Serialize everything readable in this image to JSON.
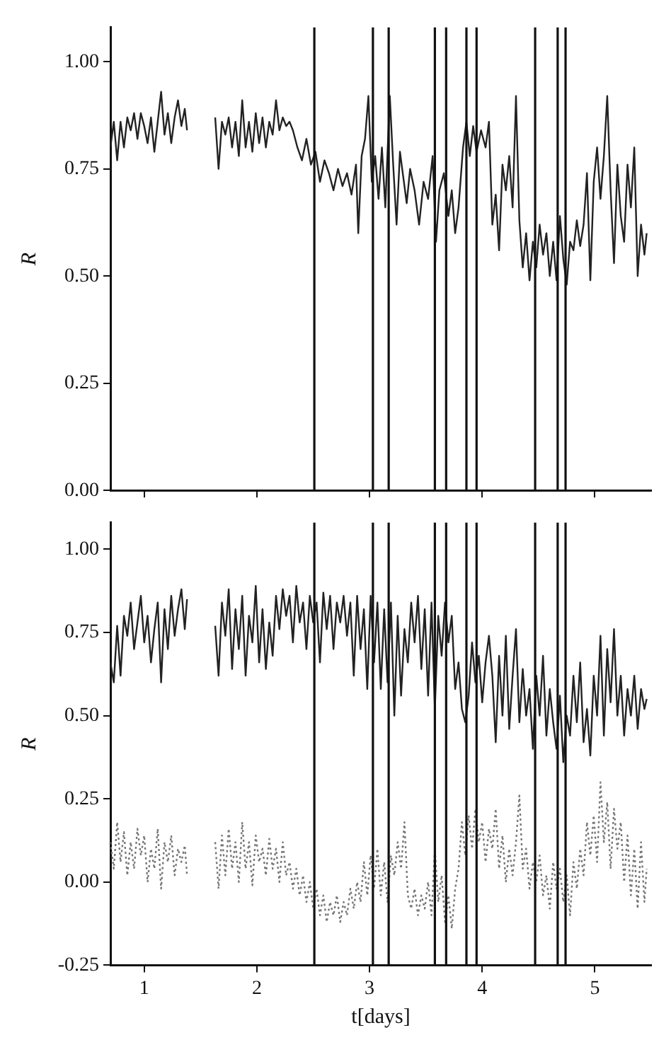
{
  "chart_data": [
    {
      "type": "line",
      "ylabel": "R",
      "xlim": [
        0.7,
        5.5
      ],
      "xticks": [
        1,
        2,
        3,
        4,
        5
      ],
      "ylim": [
        0,
        1.08
      ],
      "yticks": [
        {
          "value": 0,
          "label": "0.00"
        },
        {
          "value": 0.25,
          "label": "0.25"
        },
        {
          "value": 0.5,
          "label": "0.50"
        },
        {
          "value": 0.75,
          "label": "0.75"
        },
        {
          "value": 1,
          "label": "1.00"
        }
      ],
      "tick_labels": "y",
      "grid": false,
      "legend": false,
      "marker": "none",
      "ref_lines": [
        {
          "axis": "x",
          "value": 2.51,
          "color": "#111111"
        },
        {
          "axis": "x",
          "value": 3.03,
          "color": "#111111"
        },
        {
          "axis": "x",
          "value": 3.17,
          "color": "#111111"
        },
        {
          "axis": "x",
          "value": 3.58,
          "color": "#111111"
        },
        {
          "axis": "x",
          "value": 3.68,
          "color": "#111111"
        },
        {
          "axis": "x",
          "value": 3.86,
          "color": "#111111"
        },
        {
          "axis": "x",
          "value": 3.95,
          "color": "#111111"
        },
        {
          "axis": "x",
          "value": 4.47,
          "color": "#111111"
        },
        {
          "axis": "x",
          "value": 4.67,
          "color": "#111111"
        },
        {
          "axis": "x",
          "value": 4.74,
          "color": "#111111"
        }
      ],
      "series": [
        {
          "color": "#222222",
          "line_style": "solid",
          "x": [
            0.7,
            0.73,
            0.76,
            0.79,
            0.82,
            0.85,
            0.88,
            0.91,
            0.94,
            0.97,
            1.0,
            1.03,
            1.06,
            1.09,
            1.12,
            1.15,
            1.18,
            1.21,
            1.24,
            1.27,
            1.3,
            1.33,
            1.36,
            1.38,
            1.5,
            1.63,
            1.66,
            1.69,
            1.72,
            1.75,
            1.78,
            1.81,
            1.84,
            1.87,
            1.9,
            1.93,
            1.96,
            1.99,
            2.02,
            2.05,
            2.08,
            2.11,
            2.14,
            2.17,
            2.2,
            2.23,
            2.26,
            2.29,
            2.32,
            2.36,
            2.4,
            2.44,
            2.48,
            2.52,
            2.56,
            2.6,
            2.64,
            2.68,
            2.72,
            2.76,
            2.8,
            2.84,
            2.88,
            2.9,
            2.93,
            2.96,
            2.99,
            3.02,
            3.05,
            3.08,
            3.11,
            3.14,
            3.18,
            3.21,
            3.24,
            3.27,
            3.3,
            3.33,
            3.36,
            3.4,
            3.44,
            3.48,
            3.52,
            3.56,
            3.59,
            3.62,
            3.66,
            3.7,
            3.73,
            3.76,
            3.79,
            3.83,
            3.86,
            3.89,
            3.92,
            3.95,
            3.99,
            4.03,
            4.06,
            4.09,
            4.12,
            4.15,
            4.18,
            4.21,
            4.24,
            4.27,
            4.3,
            4.33,
            4.36,
            4.39,
            4.42,
            4.45,
            4.48,
            4.51,
            4.54,
            4.57,
            4.6,
            4.63,
            4.66,
            4.69,
            4.72,
            4.75,
            4.78,
            4.81,
            4.84,
            4.87,
            4.9,
            4.93,
            4.96,
            4.99,
            5.02,
            5.05,
            5.08,
            5.11,
            5.14,
            5.17,
            5.2,
            5.23,
            5.26,
            5.29,
            5.32,
            5.35,
            5.38,
            5.41,
            5.44,
            5.46
          ],
          "values": [
            0.8,
            0.86,
            0.77,
            0.86,
            0.8,
            0.87,
            0.84,
            0.88,
            0.82,
            0.88,
            0.85,
            0.81,
            0.87,
            0.79,
            0.86,
            0.93,
            0.83,
            0.88,
            0.81,
            0.87,
            0.91,
            0.85,
            0.89,
            0.84,
            null,
            0.87,
            0.75,
            0.86,
            0.83,
            0.87,
            0.8,
            0.86,
            0.78,
            0.91,
            0.8,
            0.86,
            0.79,
            0.88,
            0.81,
            0.87,
            0.8,
            0.86,
            0.83,
            0.91,
            0.84,
            0.87,
            0.85,
            0.86,
            0.84,
            0.8,
            0.77,
            0.82,
            0.76,
            0.79,
            0.72,
            0.77,
            0.74,
            0.7,
            0.75,
            0.71,
            0.74,
            0.69,
            0.76,
            0.6,
            0.78,
            0.82,
            0.92,
            0.72,
            0.78,
            0.68,
            0.8,
            0.66,
            0.92,
            0.76,
            0.62,
            0.79,
            0.73,
            0.67,
            0.75,
            0.7,
            0.62,
            0.72,
            0.68,
            0.78,
            0.58,
            0.7,
            0.74,
            0.64,
            0.7,
            0.6,
            0.66,
            0.8,
            0.86,
            0.78,
            0.85,
            0.79,
            0.84,
            0.8,
            0.86,
            0.62,
            0.69,
            0.56,
            0.76,
            0.7,
            0.78,
            0.66,
            0.92,
            0.63,
            0.52,
            0.6,
            0.49,
            0.58,
            0.52,
            0.62,
            0.55,
            0.6,
            0.5,
            0.58,
            0.49,
            0.64,
            0.54,
            0.48,
            0.58,
            0.56,
            0.63,
            0.57,
            0.62,
            0.74,
            0.49,
            0.72,
            0.8,
            0.68,
            0.78,
            0.92,
            0.7,
            0.53,
            0.76,
            0.64,
            0.58,
            0.76,
            0.66,
            0.8,
            0.5,
            0.62,
            0.55,
            0.6
          ]
        }
      ]
    },
    {
      "type": "line",
      "xlabel": "t[days]",
      "ylabel": "R",
      "xlim": [
        0.7,
        5.5
      ],
      "xticks": [
        1,
        2,
        3,
        4,
        5
      ],
      "ylim": [
        -0.25,
        1.08
      ],
      "yticks": [
        {
          "value": -0.25,
          "label": "-0.25"
        },
        {
          "value": 0,
          "label": "0.00"
        },
        {
          "value": 0.25,
          "label": "0.25"
        },
        {
          "value": 0.5,
          "label": "0.50"
        },
        {
          "value": 0.75,
          "label": "0.75"
        },
        {
          "value": 1,
          "label": "1.00"
        }
      ],
      "grid": false,
      "legend": false,
      "marker": "none",
      "ref_lines": [
        {
          "axis": "x",
          "value": 2.51,
          "color": "#111111"
        },
        {
          "axis": "x",
          "value": 3.03,
          "color": "#111111"
        },
        {
          "axis": "x",
          "value": 3.17,
          "color": "#111111"
        },
        {
          "axis": "x",
          "value": 3.58,
          "color": "#111111"
        },
        {
          "axis": "x",
          "value": 3.68,
          "color": "#111111"
        },
        {
          "axis": "x",
          "value": 3.86,
          "color": "#111111"
        },
        {
          "axis": "x",
          "value": 3.95,
          "color": "#111111"
        },
        {
          "axis": "x",
          "value": 4.47,
          "color": "#111111"
        },
        {
          "axis": "x",
          "value": 4.67,
          "color": "#111111"
        },
        {
          "axis": "x",
          "value": 4.74,
          "color": "#111111"
        }
      ],
      "series": [
        {
          "color": "#222222",
          "line_style": "solid",
          "x": [
            0.7,
            0.73,
            0.76,
            0.79,
            0.82,
            0.85,
            0.88,
            0.91,
            0.94,
            0.97,
            1.0,
            1.03,
            1.06,
            1.09,
            1.12,
            1.15,
            1.18,
            1.21,
            1.24,
            1.27,
            1.3,
            1.33,
            1.36,
            1.38,
            1.5,
            1.63,
            1.66,
            1.69,
            1.72,
            1.75,
            1.78,
            1.81,
            1.84,
            1.87,
            1.9,
            1.93,
            1.96,
            1.99,
            2.02,
            2.05,
            2.08,
            2.11,
            2.14,
            2.17,
            2.2,
            2.23,
            2.26,
            2.29,
            2.32,
            2.35,
            2.38,
            2.41,
            2.44,
            2.47,
            2.5,
            2.53,
            2.56,
            2.59,
            2.62,
            2.65,
            2.68,
            2.71,
            2.74,
            2.77,
            2.8,
            2.83,
            2.86,
            2.89,
            2.92,
            2.95,
            2.98,
            3.01,
            3.04,
            3.07,
            3.1,
            3.13,
            3.16,
            3.19,
            3.22,
            3.25,
            3.28,
            3.31,
            3.34,
            3.37,
            3.4,
            3.43,
            3.46,
            3.49,
            3.52,
            3.55,
            3.58,
            3.61,
            3.64,
            3.67,
            3.7,
            3.73,
            3.76,
            3.79,
            3.82,
            3.85,
            3.88,
            3.91,
            3.94,
            3.97,
            4.0,
            4.03,
            4.06,
            4.09,
            4.12,
            4.15,
            4.18,
            4.21,
            4.24,
            4.27,
            4.3,
            4.33,
            4.36,
            4.39,
            4.42,
            4.45,
            4.48,
            4.51,
            4.54,
            4.57,
            4.6,
            4.63,
            4.66,
            4.69,
            4.72,
            4.75,
            4.78,
            4.81,
            4.84,
            4.87,
            4.9,
            4.93,
            4.96,
            4.99,
            5.02,
            5.05,
            5.08,
            5.11,
            5.14,
            5.17,
            5.2,
            5.23,
            5.26,
            5.29,
            5.32,
            5.35,
            5.38,
            5.41,
            5.44,
            5.46
          ],
          "values": [
            0.66,
            0.6,
            0.77,
            0.62,
            0.8,
            0.74,
            0.84,
            0.7,
            0.78,
            0.86,
            0.72,
            0.8,
            0.66,
            0.76,
            0.84,
            0.6,
            0.82,
            0.7,
            0.86,
            0.74,
            0.82,
            0.88,
            0.76,
            0.85,
            null,
            0.77,
            0.62,
            0.84,
            0.74,
            0.88,
            0.64,
            0.82,
            0.7,
            0.86,
            0.62,
            0.8,
            0.72,
            0.89,
            0.66,
            0.82,
            0.64,
            0.78,
            0.68,
            0.86,
            0.76,
            0.88,
            0.8,
            0.86,
            0.72,
            0.89,
            0.78,
            0.84,
            0.7,
            0.86,
            0.78,
            0.84,
            0.66,
            0.87,
            0.76,
            0.86,
            0.7,
            0.84,
            0.78,
            0.86,
            0.74,
            0.84,
            0.62,
            0.86,
            0.7,
            0.82,
            0.58,
            0.86,
            0.66,
            0.84,
            0.58,
            0.82,
            0.6,
            0.84,
            0.5,
            0.8,
            0.56,
            0.76,
            0.66,
            0.84,
            0.72,
            0.86,
            0.64,
            0.82,
            0.56,
            0.84,
            0.52,
            0.8,
            0.68,
            0.84,
            0.72,
            0.8,
            0.58,
            0.66,
            0.52,
            0.48,
            0.56,
            0.72,
            0.6,
            0.68,
            0.54,
            0.66,
            0.74,
            0.62,
            0.42,
            0.68,
            0.5,
            0.74,
            0.46,
            0.62,
            0.76,
            0.48,
            0.64,
            0.5,
            0.58,
            0.4,
            0.62,
            0.5,
            0.68,
            0.44,
            0.58,
            0.48,
            0.4,
            0.56,
            0.36,
            0.5,
            0.44,
            0.62,
            0.48,
            0.66,
            0.42,
            0.52,
            0.38,
            0.62,
            0.5,
            0.74,
            0.44,
            0.7,
            0.54,
            0.76,
            0.5,
            0.62,
            0.44,
            0.58,
            0.5,
            0.62,
            0.46,
            0.58,
            0.52,
            0.55
          ]
        },
        {
          "color": "#777777",
          "line_style": "dotted",
          "x": [
            0.7,
            0.73,
            0.76,
            0.79,
            0.82,
            0.85,
            0.88,
            0.91,
            0.94,
            0.97,
            1.0,
            1.03,
            1.06,
            1.09,
            1.12,
            1.15,
            1.18,
            1.21,
            1.24,
            1.27,
            1.3,
            1.33,
            1.36,
            1.38,
            1.5,
            1.63,
            1.66,
            1.69,
            1.72,
            1.75,
            1.78,
            1.81,
            1.84,
            1.87,
            1.9,
            1.93,
            1.96,
            1.99,
            2.02,
            2.05,
            2.08,
            2.11,
            2.14,
            2.17,
            2.2,
            2.23,
            2.26,
            2.29,
            2.32,
            2.35,
            2.38,
            2.41,
            2.44,
            2.47,
            2.5,
            2.53,
            2.56,
            2.59,
            2.62,
            2.65,
            2.68,
            2.71,
            2.74,
            2.77,
            2.8,
            2.83,
            2.86,
            2.89,
            2.92,
            2.95,
            2.98,
            3.01,
            3.04,
            3.07,
            3.1,
            3.13,
            3.16,
            3.19,
            3.22,
            3.25,
            3.28,
            3.31,
            3.34,
            3.37,
            3.4,
            3.43,
            3.46,
            3.49,
            3.52,
            3.55,
            3.58,
            3.61,
            3.64,
            3.67,
            3.7,
            3.73,
            3.76,
            3.79,
            3.82,
            3.85,
            3.88,
            3.91,
            3.94,
            3.97,
            4.0,
            4.03,
            4.06,
            4.09,
            4.12,
            4.15,
            4.18,
            4.21,
            4.24,
            4.27,
            4.3,
            4.33,
            4.36,
            4.39,
            4.42,
            4.45,
            4.48,
            4.51,
            4.54,
            4.57,
            4.6,
            4.63,
            4.66,
            4.69,
            4.72,
            4.75,
            4.78,
            4.81,
            4.84,
            4.87,
            4.9,
            4.93,
            4.96,
            4.99,
            5.02,
            5.05,
            5.08,
            5.11,
            5.14,
            5.17,
            5.2,
            5.23,
            5.26,
            5.29,
            5.32,
            5.35,
            5.38,
            5.41,
            5.44,
            5.46
          ],
          "values": [
            0.12,
            0.04,
            0.18,
            0.06,
            0.15,
            0.02,
            0.12,
            0.04,
            0.16,
            0.08,
            0.14,
            0.0,
            0.1,
            0.04,
            0.16,
            -0.02,
            0.12,
            0.06,
            0.14,
            0.02,
            0.1,
            0.06,
            0.11,
            0.02,
            null,
            0.12,
            -0.02,
            0.14,
            0.02,
            0.16,
            0.04,
            0.12,
            0.0,
            0.18,
            0.04,
            0.12,
            -0.01,
            0.14,
            0.06,
            0.1,
            0.02,
            0.13,
            0.04,
            0.1,
            0.0,
            0.12,
            0.02,
            0.06,
            -0.02,
            0.04,
            -0.04,
            0.02,
            -0.06,
            0.0,
            -0.08,
            -0.02,
            -0.1,
            -0.04,
            -0.12,
            -0.06,
            -0.1,
            -0.04,
            -0.12,
            -0.06,
            -0.1,
            -0.02,
            -0.08,
            0.0,
            -0.06,
            0.06,
            -0.04,
            0.08,
            -0.02,
            0.1,
            -0.04,
            0.06,
            -0.06,
            0.08,
            0.02,
            0.12,
            0.04,
            0.18,
            -0.04,
            -0.08,
            -0.02,
            -0.1,
            -0.04,
            -0.08,
            0.0,
            -0.1,
            0.1,
            -0.06,
            0.02,
            -0.12,
            -0.04,
            -0.14,
            -0.02,
            0.04,
            0.18,
            0.08,
            0.2,
            0.1,
            0.22,
            0.12,
            0.18,
            0.06,
            0.16,
            0.1,
            0.22,
            0.04,
            0.14,
            0.0,
            0.1,
            0.02,
            0.12,
            0.26,
            0.04,
            0.1,
            -0.02,
            0.06,
            0.0,
            0.08,
            -0.04,
            0.02,
            -0.08,
            0.06,
            -0.02,
            0.04,
            -0.06,
            0.02,
            -0.1,
            0.06,
            -0.02,
            0.1,
            0.02,
            0.18,
            0.08,
            0.2,
            0.06,
            0.3,
            0.12,
            0.24,
            0.04,
            0.22,
            0.1,
            0.18,
            0.0,
            0.14,
            -0.04,
            0.1,
            -0.08,
            0.12,
            -0.06,
            0.04
          ]
        }
      ]
    }
  ]
}
